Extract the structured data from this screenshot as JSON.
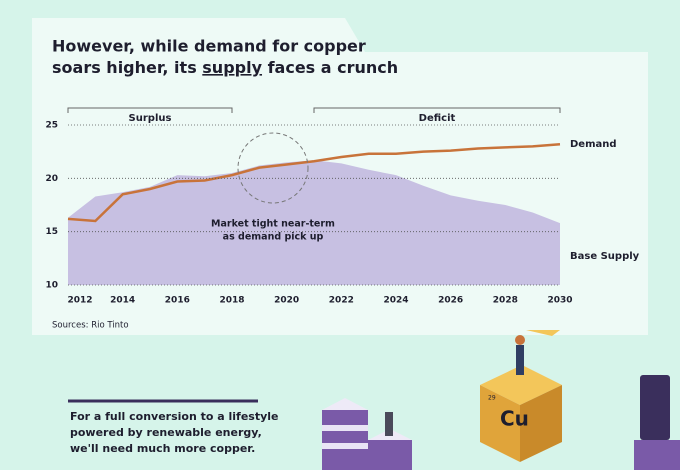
{
  "chart_data": {
    "type": "line",
    "title": [
      "However, while demand for copper",
      "soars higher, its ",
      "supply",
      " faces a crunch"
    ],
    "x": [
      2012,
      2013,
      2014,
      2015,
      2016,
      2017,
      2018,
      2019,
      2020,
      2021,
      2022,
      2023,
      2024,
      2025,
      2026,
      2027,
      2028,
      2029,
      2030
    ],
    "series": [
      {
        "name": "Base Supply",
        "color": "#c7c0e2",
        "style": "area",
        "values": [
          16.3,
          18.3,
          18.7,
          19.2,
          20.3,
          20.2,
          20.5,
          21.2,
          21.5,
          21.7,
          21.4,
          20.8,
          20.3,
          19.3,
          18.4,
          17.9,
          17.5,
          16.8,
          15.8
        ]
      },
      {
        "name": "Demand",
        "color": "#c8733a",
        "style": "line",
        "values": [
          16.2,
          16.0,
          18.5,
          19.0,
          19.7,
          19.8,
          20.3,
          21.0,
          21.3,
          21.6,
          22.0,
          22.3,
          22.3,
          22.5,
          22.6,
          22.8,
          22.9,
          23.0,
          23.2
        ]
      }
    ],
    "regions": [
      {
        "label": "Surplus",
        "start": 2012,
        "end": 2018
      },
      {
        "label": "Deficit",
        "start": 2021,
        "end": 2030
      }
    ],
    "annotation": [
      "Market tight near-term",
      "as demand pick up"
    ],
    "xlim": [
      2012,
      2030
    ],
    "xticks": [
      2012,
      2014,
      2016,
      2018,
      2020,
      2022,
      2024,
      2026,
      2028,
      2030
    ],
    "ylim": [
      10,
      25
    ],
    "yticks": [
      10,
      15,
      20,
      25
    ],
    "grid": true,
    "source": "Sources: Rio Tinto"
  },
  "footer": {
    "text": [
      "For a full conversion to a lifestyle",
      "powered by renewable energy,",
      "we'll need much more copper."
    ],
    "element_symbol": "Cu",
    "element_number": "29"
  }
}
